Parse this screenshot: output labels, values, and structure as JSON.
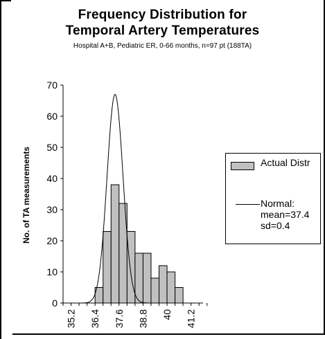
{
  "chart_data": {
    "type": "bar",
    "title_line1": "Frequency Distribution for",
    "title_line2": "Temporal Artery Temperatures",
    "subtitle": "Hospital A+B, Pediatric ER, 0-66 months, n=97 pt (188TA)",
    "ylabel": "No. of TA measurements",
    "xlabel": "",
    "ylim": [
      0,
      70
    ],
    "yticks": [
      0,
      10,
      20,
      30,
      40,
      50,
      60,
      70
    ],
    "xlim": [
      34.8,
      41.8
    ],
    "xticks": [
      "35.2",
      "36.4",
      "37.6",
      "38.8",
      "40",
      "41.2"
    ],
    "bin_width": 0.4,
    "series": [
      {
        "name": "Actual Distr",
        "type": "histogram",
        "bin_starts": [
          36.4,
          36.8,
          37.2,
          37.6,
          38.0,
          38.4,
          38.8,
          39.2,
          39.6,
          40.0
        ],
        "values": [
          5,
          23,
          38,
          32,
          23,
          16,
          16,
          8,
          12,
          10
        ],
        "extra": {
          "bin_start": 40.4,
          "value": 5
        }
      },
      {
        "name": "Normal:",
        "type": "line",
        "name_lines": [
          "Normal:",
          "mean=37.4",
          "sd=0.4"
        ],
        "mean": 37.4,
        "sd": 0.4,
        "peak": 67
      }
    ],
    "legend": {
      "position": "right"
    },
    "grid": false,
    "colors": {
      "bar_fill": "#c0c0c0",
      "bar_stroke": "#000000",
      "line": "#000000"
    }
  }
}
